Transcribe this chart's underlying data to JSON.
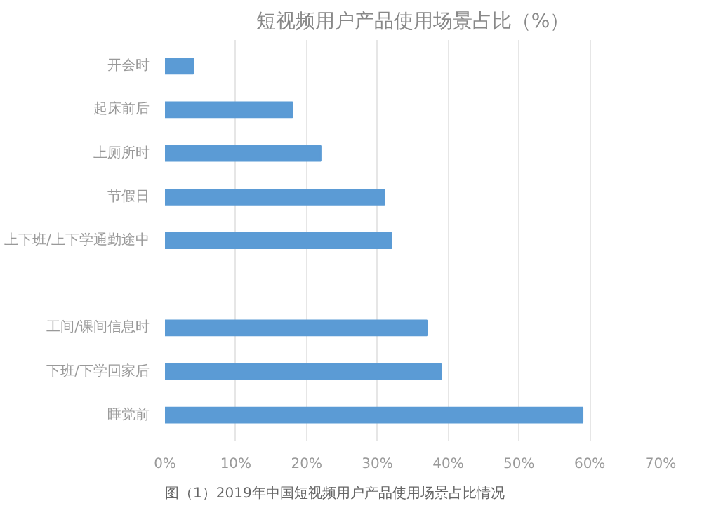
{
  "chart_data": {
    "type": "bar",
    "orientation": "horizontal",
    "title": "短视频用户产品使用场景占比（%）",
    "categories": [
      "开会时",
      "起床前后",
      "上厕所时",
      "节假日",
      "上下班/上下学通勤途中",
      null,
      "工间/课间信息时",
      "下班/下学回家后",
      "睡觉前"
    ],
    "values": [
      4,
      18,
      22,
      31,
      32,
      null,
      37,
      39,
      59
    ],
    "color": "#5b9bd5",
    "xlim": [
      0,
      70
    ],
    "xticks": [
      {
        "value": 0,
        "label": "0%"
      },
      {
        "value": 10,
        "label": "10%"
      },
      {
        "value": 20,
        "label": "20%"
      },
      {
        "value": 30,
        "label": "30%"
      },
      {
        "value": 40,
        "label": "40%"
      },
      {
        "value": 50,
        "label": "50%"
      },
      {
        "value": 60,
        "label": "60%"
      },
      {
        "value": 70,
        "label": "70%"
      }
    ],
    "grid": "x",
    "annotations": [
      "图（1）2019年中国短视频用户产品使用场景占比情况"
    ]
  }
}
